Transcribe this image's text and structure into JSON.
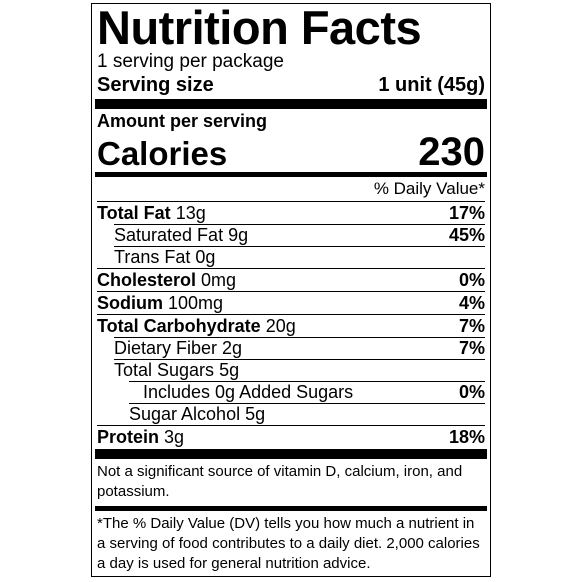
{
  "title": "Nutrition Facts",
  "servings_per_container": "1 serving per package",
  "serving_size": {
    "label": "Serving size",
    "value": "1 unit (45g)"
  },
  "amount_per_serving": "Amount per serving",
  "calories": {
    "label": "Calories",
    "value": "230"
  },
  "daily_value_header": "% Daily Value*",
  "nutrients": [
    {
      "name": "Total Fat",
      "amount": "13g",
      "dv": "17%"
    },
    {
      "name": "Saturated Fat",
      "amount": "9g",
      "dv": "45%"
    },
    {
      "name": "Trans Fat",
      "amount": "0g",
      "dv": ""
    },
    {
      "name": "Cholesterol",
      "amount": "0mg",
      "dv": "0%"
    },
    {
      "name": "Sodium",
      "amount": "100mg",
      "dv": "4%"
    },
    {
      "name": "Total Carbohydrate",
      "amount": "20g",
      "dv": "7%"
    },
    {
      "name": "Dietary Fiber",
      "amount": "2g",
      "dv": "7%"
    },
    {
      "name": "Total Sugars",
      "amount": "5g",
      "dv": ""
    },
    {
      "name": "Includes 0g Added Sugars",
      "amount": "",
      "dv": "0%"
    },
    {
      "name": "Sugar Alcohol",
      "amount": "5g",
      "dv": ""
    },
    {
      "name": "Protein",
      "amount": "3g",
      "dv": "18%"
    }
  ],
  "vitamin_note": "Not a significant source of vitamin D, calcium, iron, and potassium.",
  "footnote": "*The % Daily Value (DV) tells you how much a nutrient in a serving of food contributes to a daily diet. 2,000 calories a day is used for general nutrition advice."
}
